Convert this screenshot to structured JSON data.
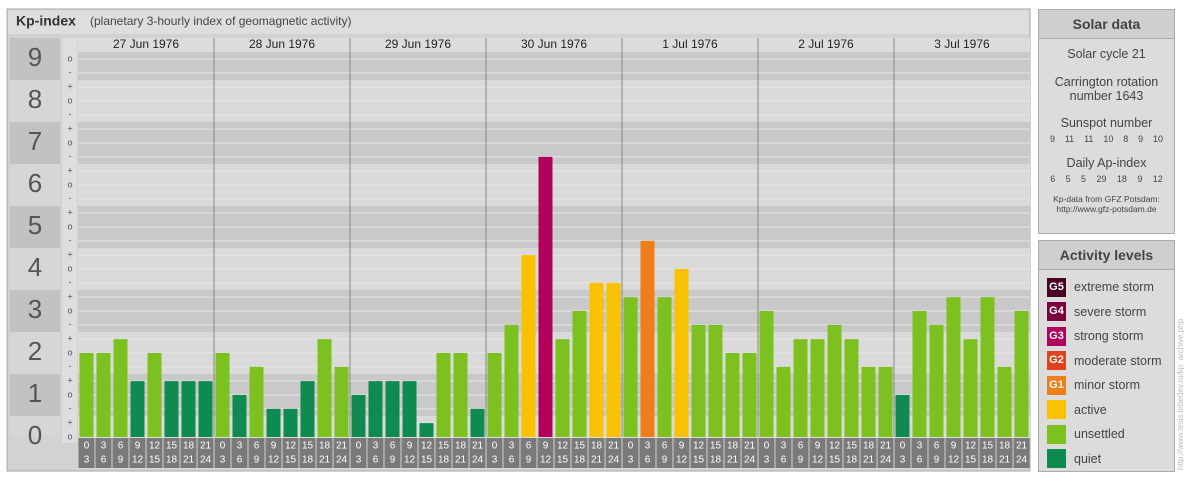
{
  "chart_data": {
    "type": "bar",
    "title": "Kp-index",
    "subtitle": "(planetary 3-hourly index of geomagnetic activity)",
    "ylim": [
      0,
      9.5
    ],
    "yticks": [
      0,
      1,
      2,
      3,
      4,
      5,
      6,
      7,
      8,
      9
    ],
    "minor_yticks": [
      {
        "value": 0,
        "label": "o"
      },
      {
        "value": 0.33,
        "label": "+"
      },
      {
        "value": 0.67,
        "label": "-"
      },
      {
        "value": 1,
        "label": "o"
      },
      {
        "value": 1.33,
        "label": "+"
      },
      {
        "value": 1.67,
        "label": "-"
      },
      {
        "value": 2,
        "label": "o"
      },
      {
        "value": 2.33,
        "label": "+"
      },
      {
        "value": 2.67,
        "label": "-"
      },
      {
        "value": 3,
        "label": "o"
      },
      {
        "value": 3.33,
        "label": "+"
      },
      {
        "value": 3.67,
        "label": "-"
      },
      {
        "value": 4,
        "label": "o"
      },
      {
        "value": 4.33,
        "label": "+"
      },
      {
        "value": 4.67,
        "label": "-"
      },
      {
        "value": 5,
        "label": "o"
      },
      {
        "value": 5.33,
        "label": "+"
      },
      {
        "value": 5.67,
        "label": "-"
      },
      {
        "value": 6,
        "label": "o"
      },
      {
        "value": 6.33,
        "label": "+"
      },
      {
        "value": 6.67,
        "label": "-"
      },
      {
        "value": 7,
        "label": "o"
      },
      {
        "value": 7.33,
        "label": "+"
      },
      {
        "value": 7.67,
        "label": "-"
      },
      {
        "value": 8,
        "label": "o"
      },
      {
        "value": 8.33,
        "label": "+"
      },
      {
        "value": 8.67,
        "label": "-"
      },
      {
        "value": 9,
        "label": "o"
      }
    ],
    "categories": [
      {
        "from": "0",
        "to": "3"
      },
      {
        "from": "3",
        "to": "6"
      },
      {
        "from": "6",
        "to": "9"
      },
      {
        "from": "9",
        "to": "12"
      },
      {
        "from": "12",
        "to": "15"
      },
      {
        "from": "15",
        "to": "18"
      },
      {
        "from": "18",
        "to": "21"
      },
      {
        "from": "21",
        "to": "24"
      }
    ],
    "grid": true,
    "series": [
      {
        "name": "27 Jun 1976",
        "values": [
          2,
          2,
          2.33,
          1.33,
          2,
          1.33,
          1.33,
          1.33
        ],
        "colors": [
          "#7cc11f",
          "#7cc11f",
          "#7cc11f",
          "#0f8a50",
          "#7cc11f",
          "#0f8a50",
          "#0f8a50",
          "#0f8a50"
        ]
      },
      {
        "name": "28 Jun 1976",
        "values": [
          2,
          1,
          1.67,
          0.67,
          0.67,
          1.33,
          2.33,
          1.67
        ],
        "colors": [
          "#7cc11f",
          "#0f8a50",
          "#7cc11f",
          "#0f8a50",
          "#0f8a50",
          "#0f8a50",
          "#7cc11f",
          "#7cc11f"
        ]
      },
      {
        "name": "29 Jun 1976",
        "values": [
          1,
          1.33,
          1.33,
          1.33,
          0.33,
          2,
          2,
          0.67
        ],
        "colors": [
          "#0f8a50",
          "#0f8a50",
          "#0f8a50",
          "#0f8a50",
          "#0f8a50",
          "#7cc11f",
          "#7cc11f",
          "#0f8a50"
        ]
      },
      {
        "name": "30 Jun 1976",
        "values": [
          2,
          2.67,
          4.33,
          6.67,
          2.33,
          3,
          3.67,
          3.67
        ],
        "colors": [
          "#7cc11f",
          "#7cc11f",
          "#f8c200",
          "#b0005c",
          "#7cc11f",
          "#7cc11f",
          "#f8c200",
          "#f8c200"
        ]
      },
      {
        "name": "1 Jul 1976",
        "values": [
          3.33,
          4.67,
          3.33,
          4,
          2.67,
          2.67,
          2,
          2
        ],
        "colors": [
          "#7cc11f",
          "#ee7d1a",
          "#7cc11f",
          "#f8c200",
          "#7cc11f",
          "#7cc11f",
          "#7cc11f",
          "#7cc11f"
        ]
      },
      {
        "name": "2 Jul 1976",
        "values": [
          3,
          1.67,
          2.33,
          2.33,
          2.67,
          2.33,
          1.67,
          1.67
        ],
        "colors": [
          "#7cc11f",
          "#7cc11f",
          "#7cc11f",
          "#7cc11f",
          "#7cc11f",
          "#7cc11f",
          "#7cc11f",
          "#7cc11f"
        ]
      },
      {
        "name": "3 Jul 1976",
        "values": [
          1,
          3,
          2.67,
          3.33,
          2.33,
          3.33,
          1.67,
          3
        ],
        "colors": [
          "#0f8a50",
          "#7cc11f",
          "#7cc11f",
          "#7cc11f",
          "#7cc11f",
          "#7cc11f",
          "#7cc11f",
          "#7cc11f"
        ]
      }
    ]
  },
  "solar_data": {
    "title": "Solar data",
    "cycle": "Solar cycle 21",
    "carrington": "Carrington rotation number 1643",
    "sunspot_label": "Sunspot number",
    "sunspot_numbers": [
      9,
      11,
      11,
      10,
      8,
      9,
      10
    ],
    "ap_label": "Daily Ap-index",
    "ap_index": [
      6,
      5,
      5,
      29,
      18,
      9,
      12
    ],
    "source": "Kp-data from GFZ Potsdam:",
    "source_url": "http://www.gfz-potsdam.de"
  },
  "activity_levels": {
    "title": "Activity levels",
    "levels": [
      {
        "code": "G5",
        "name": "extreme storm",
        "color": "#4a0022"
      },
      {
        "code": "G4",
        "name": "severe storm",
        "color": "#7a0040"
      },
      {
        "code": "G3",
        "name": "strong storm",
        "color": "#b0005c"
      },
      {
        "code": "G2",
        "name": "moderate storm",
        "color": "#e0421c"
      },
      {
        "code": "G1",
        "name": "minor storm",
        "color": "#ee7d1a"
      },
      {
        "name": "active",
        "color": "#f8c200"
      },
      {
        "name": "unsettled",
        "color": "#7cc11f"
      },
      {
        "name": "quiet",
        "color": "#0f8a50"
      }
    ]
  },
  "watermark": "http://www.tesis.lebedev.ru/kp_archive.php"
}
